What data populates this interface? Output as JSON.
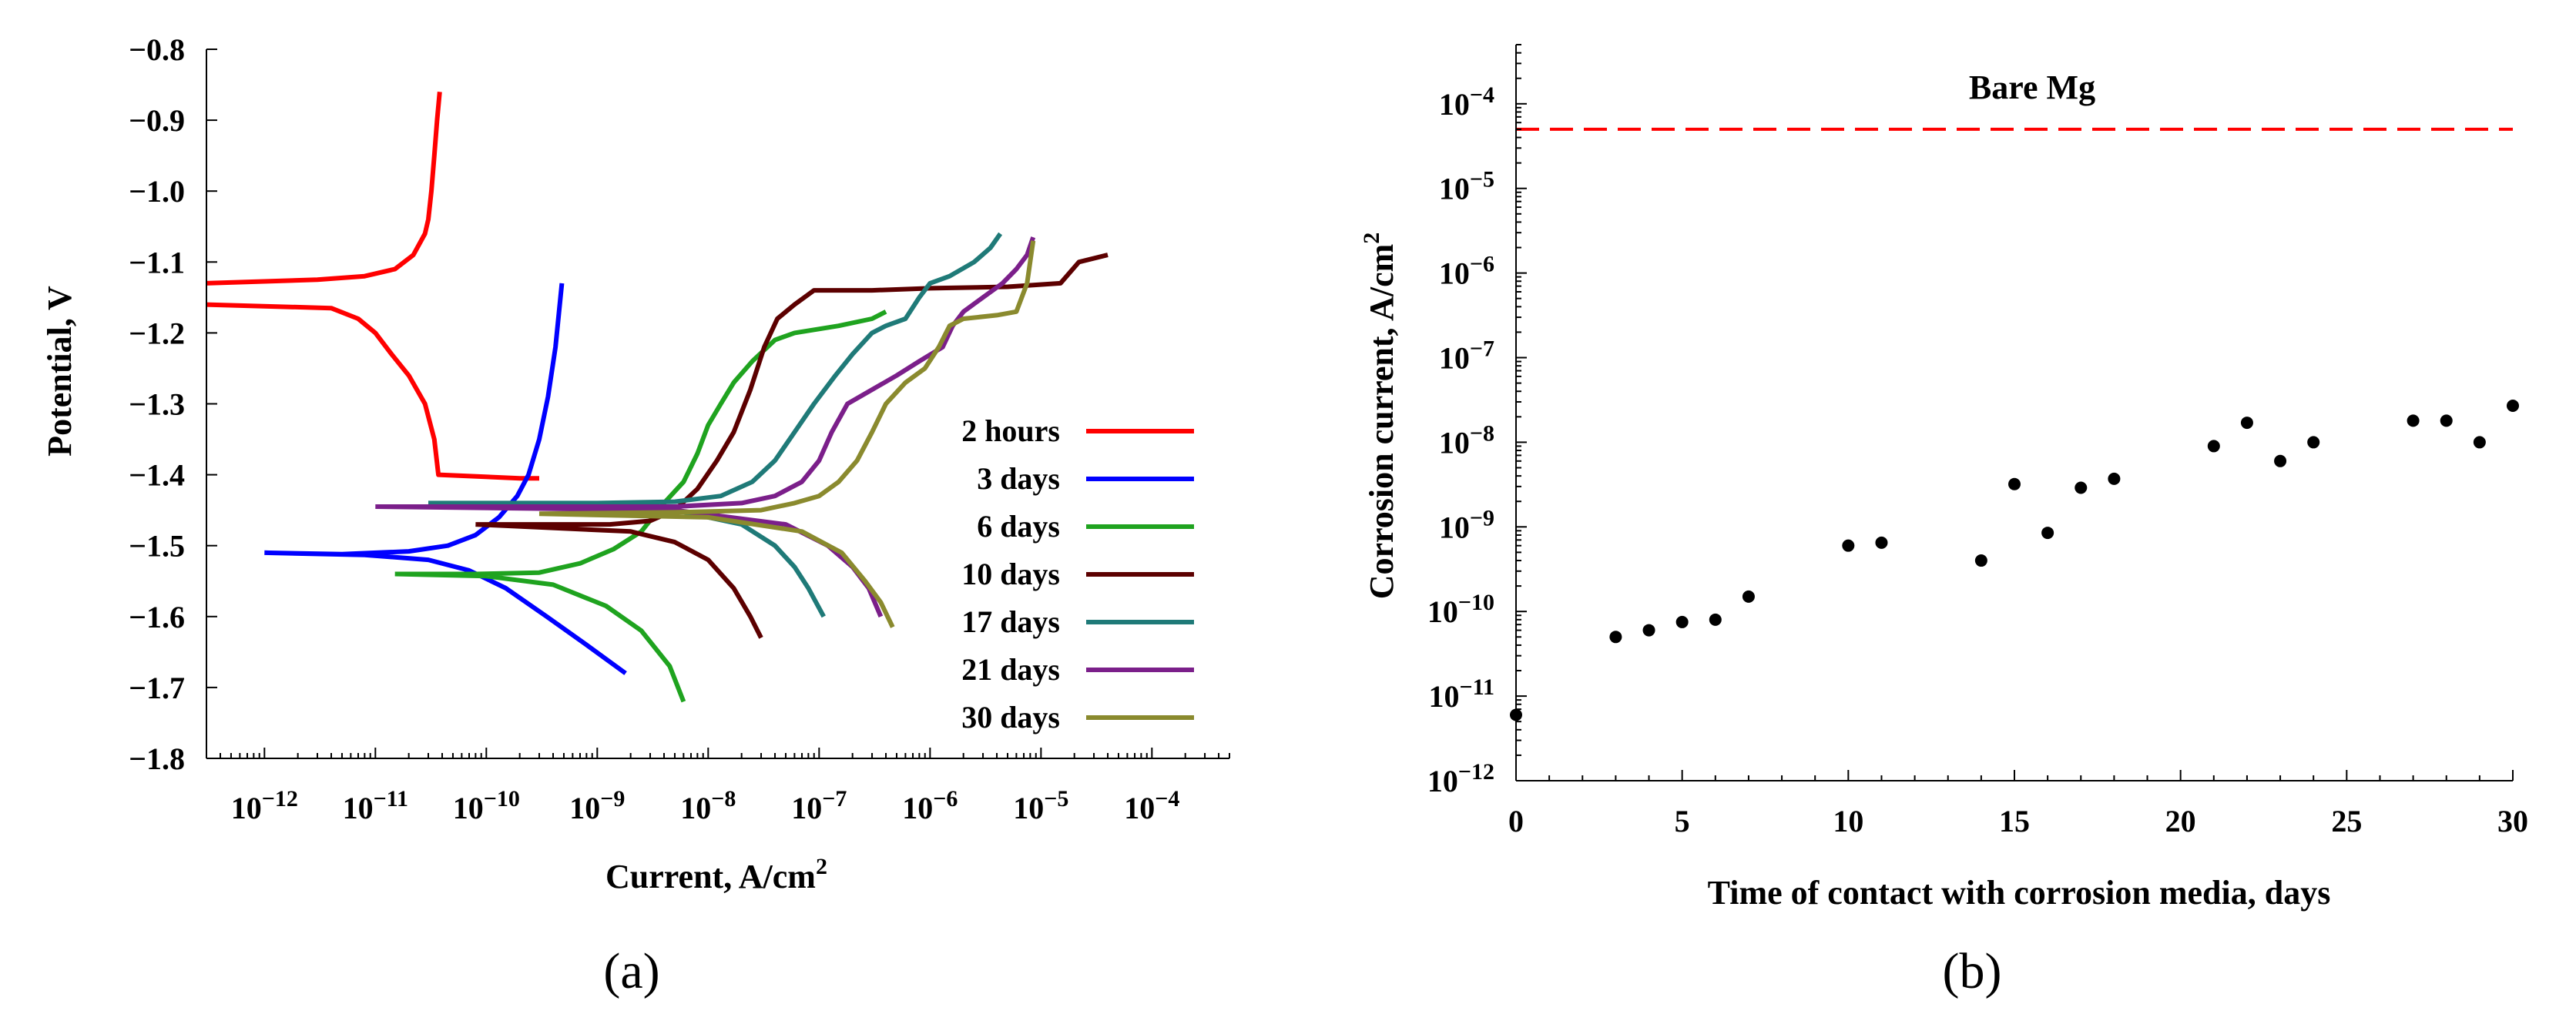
{
  "chart_data": [
    {
      "panel": "(a)",
      "type": "line",
      "xlabel": "Current, A/cm",
      "xlabel_sup": "2",
      "ylabel": "Potential, V",
      "xscale": "log",
      "xlim": [
        3e-13,
        0.0005
      ],
      "ylim": [
        -1.8,
        -0.8
      ],
      "yticks": [
        -0.8,
        -0.9,
        -1.0,
        -1.1,
        -1.2,
        -1.3,
        -1.4,
        -1.5,
        -1.6,
        -1.7,
        -1.8
      ],
      "ytick_labels": [
        "−0.8",
        "−0.9",
        "−1.0",
        "−1.1",
        "−1.2",
        "−1.3",
        "−1.4",
        "−1.5",
        "−1.6",
        "−1.7",
        "−1.8"
      ],
      "xticks": [
        1e-12,
        1e-11,
        1e-10,
        1e-09,
        1e-08,
        1e-07,
        1e-06,
        1e-05,
        0.0001
      ],
      "xtick_base": "10",
      "xtick_exponents": [
        "−12",
        "−11",
        "−10",
        "−9",
        "−8",
        "−7",
        "−6",
        "−5",
        "−4"
      ],
      "legend_position": "center-right",
      "series": [
        {
          "name": "2 hours",
          "color": "#ff0000",
          "points": [
            [
              3e-13,
              -1.13
            ],
            [
              3e-12,
              -1.125
            ],
            [
              8e-12,
              -1.12
            ],
            [
              1.5e-11,
              -1.11
            ],
            [
              2.2e-11,
              -1.09
            ],
            [
              2.8e-11,
              -1.06
            ],
            [
              3e-11,
              -1.04
            ],
            [
              3.2e-11,
              -1.0
            ],
            [
              3.4e-11,
              -0.95
            ],
            [
              3.6e-11,
              -0.9
            ],
            [
              3.8e-11,
              -0.86
            ],
            null,
            [
              3e-13,
              -1.16
            ],
            [
              4e-12,
              -1.165
            ],
            [
              7e-12,
              -1.18
            ],
            [
              1e-11,
              -1.2
            ],
            [
              1.4e-11,
              -1.23
            ],
            [
              2e-11,
              -1.26
            ],
            [
              2.8e-11,
              -1.3
            ],
            [
              3.4e-11,
              -1.35
            ],
            [
              3.7e-11,
              -1.4
            ],
            [
              2e-10,
              -1.405
            ],
            [
              3e-10,
              -1.405
            ]
          ]
        },
        {
          "name": "3 days",
          "color": "#0000ff",
          "points": [
            [
              1e-12,
              -1.51
            ],
            [
              5e-12,
              -1.512
            ],
            [
              2e-11,
              -1.508
            ],
            [
              4.5e-11,
              -1.5
            ],
            [
              8e-11,
              -1.485
            ],
            [
              1.3e-10,
              -1.46
            ],
            [
              1.9e-10,
              -1.43
            ],
            [
              2.4e-10,
              -1.4
            ],
            [
              3e-10,
              -1.35
            ],
            [
              3.6e-10,
              -1.29
            ],
            [
              4.2e-10,
              -1.22
            ],
            [
              4.8e-10,
              -1.13
            ],
            null,
            [
              1e-12,
              -1.51
            ],
            [
              8e-12,
              -1.513
            ],
            [
              3e-11,
              -1.52
            ],
            [
              7e-11,
              -1.535
            ],
            [
              1.5e-10,
              -1.56
            ],
            [
              3.5e-10,
              -1.6
            ],
            [
              8e-10,
              -1.64
            ],
            [
              1.8e-09,
              -1.68
            ]
          ]
        },
        {
          "name": "6 days",
          "color": "#1fa31f",
          "points": [
            [
              1.5e-11,
              -1.54
            ],
            [
              8e-11,
              -1.54
            ],
            [
              3e-10,
              -1.538
            ],
            [
              7e-10,
              -1.525
            ],
            [
              1.4e-09,
              -1.505
            ],
            [
              2.5e-09,
              -1.48
            ],
            [
              4e-09,
              -1.44
            ],
            [
              6e-09,
              -1.41
            ],
            [
              8e-09,
              -1.37
            ],
            [
              1e-08,
              -1.33
            ],
            [
              1.3e-08,
              -1.3
            ],
            [
              1.7e-08,
              -1.27
            ],
            [
              2.5e-08,
              -1.24
            ],
            [
              4e-08,
              -1.21
            ],
            [
              6e-08,
              -1.2
            ],
            [
              1.5e-07,
              -1.19
            ],
            [
              3e-07,
              -1.18
            ],
            [
              4e-07,
              -1.17
            ],
            null,
            [
              1.5e-11,
              -1.54
            ],
            [
              1e-10,
              -1.543
            ],
            [
              4e-10,
              -1.555
            ],
            [
              1.2e-09,
              -1.585
            ],
            [
              2.5e-09,
              -1.62
            ],
            [
              4.5e-09,
              -1.67
            ],
            [
              6e-09,
              -1.72
            ]
          ]
        },
        {
          "name": "10 days",
          "color": "#5c0000",
          "points": [
            [
              8e-11,
              -1.47
            ],
            [
              1.3e-09,
              -1.47
            ],
            [
              3e-09,
              -1.465
            ],
            [
              5e-09,
              -1.45
            ],
            [
              8e-09,
              -1.42
            ],
            [
              1.2e-08,
              -1.38
            ],
            [
              1.7e-08,
              -1.34
            ],
            [
              2.4e-08,
              -1.28
            ],
            [
              3.2e-08,
              -1.22
            ],
            [
              4.2e-08,
              -1.18
            ],
            [
              6e-08,
              -1.16
            ],
            [
              9e-08,
              -1.14
            ],
            [
              3e-07,
              -1.14
            ],
            [
              1e-06,
              -1.137
            ],
            [
              5e-06,
              -1.135
            ],
            [
              1.5e-05,
              -1.13
            ],
            [
              2.2e-05,
              -1.1
            ],
            [
              4e-05,
              -1.09
            ],
            null,
            [
              8e-11,
              -1.47
            ],
            [
              2e-09,
              -1.48
            ],
            [
              5e-09,
              -1.495
            ],
            [
              1e-08,
              -1.52
            ],
            [
              1.7e-08,
              -1.56
            ],
            [
              2.4e-08,
              -1.6
            ],
            [
              3e-08,
              -1.63
            ]
          ]
        },
        {
          "name": "17 days",
          "color": "#1f7a78",
          "points": [
            [
              3e-11,
              -1.44
            ],
            [
              1e-09,
              -1.44
            ],
            [
              5e-09,
              -1.438
            ],
            [
              1.3e-08,
              -1.43
            ],
            [
              2.5e-08,
              -1.41
            ],
            [
              4e-08,
              -1.38
            ],
            [
              6e-08,
              -1.34
            ],
            [
              9e-08,
              -1.3
            ],
            [
              1.4e-07,
              -1.26
            ],
            [
              2e-07,
              -1.23
            ],
            [
              3e-07,
              -1.2
            ],
            [
              4e-07,
              -1.19
            ],
            [
              6e-07,
              -1.18
            ],
            [
              8e-07,
              -1.15
            ],
            [
              1e-06,
              -1.13
            ],
            [
              1.5e-06,
              -1.12
            ],
            [
              2.5e-06,
              -1.1
            ],
            [
              3.5e-06,
              -1.08
            ],
            [
              4.3e-06,
              -1.06
            ],
            null,
            [
              3e-11,
              -1.44
            ],
            [
              5e-09,
              -1.45
            ],
            [
              2e-08,
              -1.47
            ],
            [
              4e-08,
              -1.5
            ],
            [
              6e-08,
              -1.53
            ],
            [
              8e-08,
              -1.56
            ],
            [
              1.1e-07,
              -1.6
            ]
          ]
        },
        {
          "name": "21 days",
          "color": "#7b1f8a",
          "points": [
            [
              1e-11,
              -1.445
            ],
            [
              1e-09,
              -1.445
            ],
            [
              5e-09,
              -1.445
            ],
            [
              2e-08,
              -1.44
            ],
            [
              4e-08,
              -1.43
            ],
            [
              7e-08,
              -1.41
            ],
            [
              1e-07,
              -1.38
            ],
            [
              1.3e-07,
              -1.34
            ],
            [
              1.8e-07,
              -1.3
            ],
            [
              3e-07,
              -1.28
            ],
            [
              5e-07,
              -1.26
            ],
            [
              8e-07,
              -1.24
            ],
            [
              1.3e-06,
              -1.22
            ],
            [
              1.6e-06,
              -1.19
            ],
            [
              2e-06,
              -1.17
            ],
            [
              3e-06,
              -1.15
            ],
            [
              4.5e-06,
              -1.13
            ],
            [
              6e-06,
              -1.11
            ],
            [
              7.5e-06,
              -1.09
            ],
            [
              8.5e-06,
              -1.065
            ],
            null,
            [
              1e-11,
              -1.445
            ],
            [
              5e-09,
              -1.45
            ],
            [
              5e-08,
              -1.47
            ],
            [
              1.2e-07,
              -1.5
            ],
            [
              2e-07,
              -1.53
            ],
            [
              2.8e-07,
              -1.56
            ],
            [
              3.6e-07,
              -1.6
            ]
          ]
        },
        {
          "name": "30 days",
          "color": "#8a8a2e",
          "points": [
            [
              3e-10,
              -1.455
            ],
            [
              5e-09,
              -1.453
            ],
            [
              3e-08,
              -1.45
            ],
            [
              6e-08,
              -1.44
            ],
            [
              1e-07,
              -1.43
            ],
            [
              1.5e-07,
              -1.41
            ],
            [
              2.2e-07,
              -1.38
            ],
            [
              3e-07,
              -1.34
            ],
            [
              4e-07,
              -1.3
            ],
            [
              6e-07,
              -1.27
            ],
            [
              9e-07,
              -1.25
            ],
            [
              1.2e-06,
              -1.22
            ],
            [
              1.5e-06,
              -1.19
            ],
            [
              2e-06,
              -1.18
            ],
            [
              4e-06,
              -1.175
            ],
            [
              6e-06,
              -1.17
            ],
            [
              7.5e-06,
              -1.13
            ],
            [
              8.5e-06,
              -1.07
            ],
            null,
            [
              3e-10,
              -1.455
            ],
            [
              1e-08,
              -1.46
            ],
            [
              7e-08,
              -1.48
            ],
            [
              1.6e-07,
              -1.51
            ],
            [
              2.6e-07,
              -1.55
            ],
            [
              3.6e-07,
              -1.58
            ],
            [
              4.6e-07,
              -1.615
            ]
          ]
        }
      ]
    },
    {
      "panel": "(b)",
      "type": "scatter",
      "xlabel": "Time of contact with corrosion media, days",
      "ylabel": "Corrosion current, A/cm",
      "ylabel_sup": "2",
      "yscale": "log",
      "xlim": [
        0,
        30
      ],
      "ylim": [
        1e-12,
        0.0005
      ],
      "xticks": [
        0,
        5,
        10,
        15,
        20,
        25,
        30
      ],
      "xtick_labels": [
        "0",
        "5",
        "10",
        "15",
        "20",
        "25",
        "30"
      ],
      "yticks": [
        1e-12,
        1e-11,
        1e-10,
        1e-09,
        1e-08,
        1e-07,
        1e-06,
        1e-05,
        0.0001
      ],
      "ytick_base": "10",
      "ytick_exponents": [
        "−12",
        "−11",
        "−10",
        "−9",
        "−8",
        "−7",
        "−6",
        "−5",
        "−4"
      ],
      "reference_line": {
        "label": "Bare Mg",
        "value": 5e-05,
        "color": "#ff0000",
        "style": "dashed"
      },
      "x": [
        0,
        3,
        4,
        5,
        6,
        7,
        10,
        11,
        14,
        15,
        16,
        17,
        18,
        21,
        22,
        23,
        24,
        27,
        28,
        29,
        30
      ],
      "y": [
        6e-12,
        5e-11,
        6e-11,
        7.5e-11,
        8e-11,
        1.5e-10,
        6e-10,
        6.5e-10,
        4e-10,
        3.2e-09,
        8.5e-10,
        2.9e-09,
        3.7e-09,
        9e-09,
        1.7e-08,
        6e-09,
        1e-08,
        1.8e-08,
        1.8e-08,
        1e-08,
        2.7e-08
      ]
    }
  ]
}
